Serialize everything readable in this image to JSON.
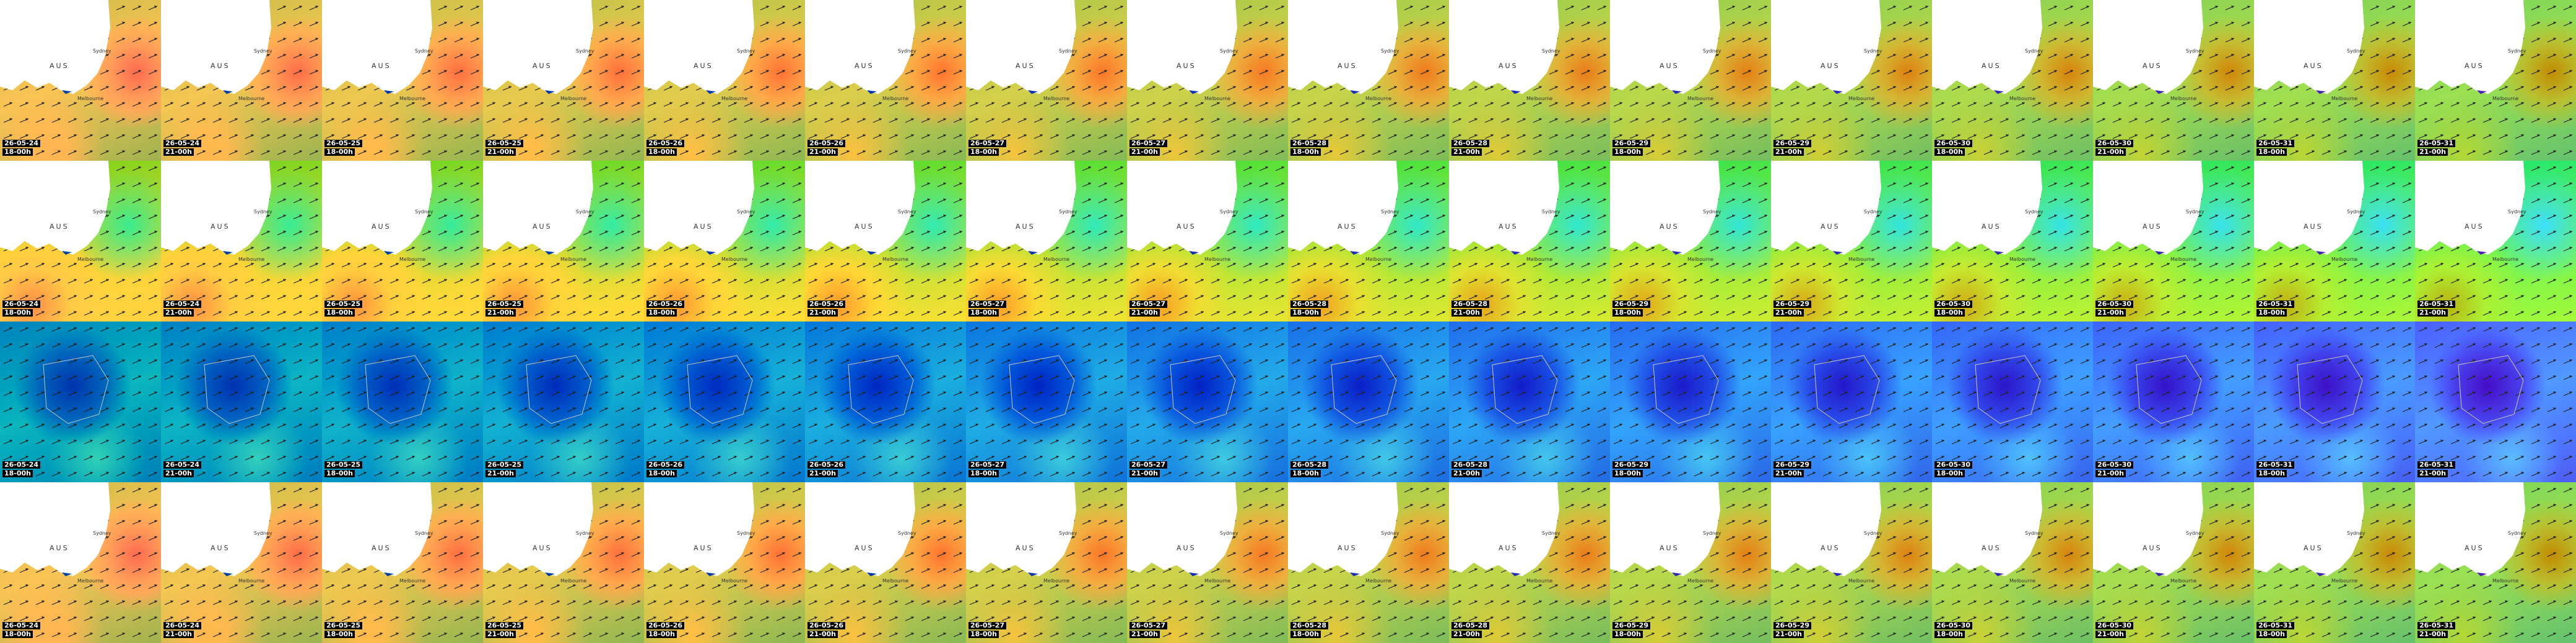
{
  "rows": [
    {
      "place_labels": [
        "AUS",
        "Sydney",
        "Melbourne"
      ],
      "dates": [
        "26-05-24",
        "26-05-24",
        "26-05-25",
        "26-05-25",
        "26-05-26",
        "26-05-26",
        "26-05-27",
        "26-05-27",
        "26-05-28",
        "26-05-28",
        "26-05-29",
        "26-05-29",
        "26-05-30",
        "26-05-30",
        "26-05-31",
        "26-05-31"
      ],
      "times": [
        "18-00h",
        "21-00h",
        "18-00h",
        "21-00h",
        "18-00h",
        "21-00h",
        "18-00h",
        "21-00h",
        "18-00h",
        "21-00h",
        "18-00h",
        "21-00h",
        "18-00h",
        "21-00h",
        "18-00h",
        "21-00h"
      ]
    },
    {
      "place_labels": [
        "AUS",
        "Sydney",
        "Melbourne"
      ],
      "dates": [
        "26-05-24",
        "26-05-24",
        "26-05-25",
        "26-05-25",
        "26-05-26",
        "26-05-26",
        "26-05-27",
        "26-05-27",
        "26-05-28",
        "26-05-28",
        "26-05-29",
        "26-05-29",
        "26-05-30",
        "26-05-30",
        "26-05-31",
        "26-05-31"
      ],
      "times": [
        "18-00h",
        "21-00h",
        "18-00h",
        "21-00h",
        "18-00h",
        "21-00h",
        "18-00h",
        "21-00h",
        "18-00h",
        "21-00h",
        "18-00h",
        "21-00h",
        "18-00h",
        "21-00h",
        "18-00h",
        "21-00h"
      ]
    },
    {
      "place_labels": [],
      "dates": [
        "26-05-24",
        "26-05-24",
        "26-05-25",
        "26-05-25",
        "26-05-26",
        "26-05-26",
        "26-05-27",
        "26-05-27",
        "26-05-28",
        "26-05-28",
        "26-05-29",
        "26-05-29",
        "26-05-30",
        "26-05-30",
        "26-05-31",
        "26-05-31"
      ],
      "times": [
        "18-00h",
        "21-00h",
        "18-00h",
        "21-00h",
        "18-00h",
        "21-00h",
        "18-00h",
        "21-00h",
        "18-00h",
        "21-00h",
        "18-00h",
        "21-00h",
        "18-00h",
        "21-00h",
        "18-00h",
        "21-00h"
      ]
    },
    {
      "place_labels": [
        "AUS",
        "Sydney",
        "Melbourne"
      ],
      "dates": [
        "26-05-24",
        "26-05-24",
        "26-05-25",
        "26-05-25",
        "26-05-26",
        "26-05-26",
        "26-05-27",
        "26-05-27",
        "26-05-28",
        "26-05-28",
        "26-05-29",
        "26-05-29",
        "26-05-30",
        "26-05-30",
        "26-05-31",
        "26-05-31"
      ],
      "times": [
        "18-00h",
        "21-00h",
        "18-00h",
        "21-00h",
        "18-00h",
        "21-00h",
        "18-00h",
        "21-00h",
        "18-00h",
        "21-00h",
        "18-00h",
        "21-00h",
        "18-00h",
        "21-00h",
        "18-00h",
        "21-00h"
      ]
    }
  ]
}
